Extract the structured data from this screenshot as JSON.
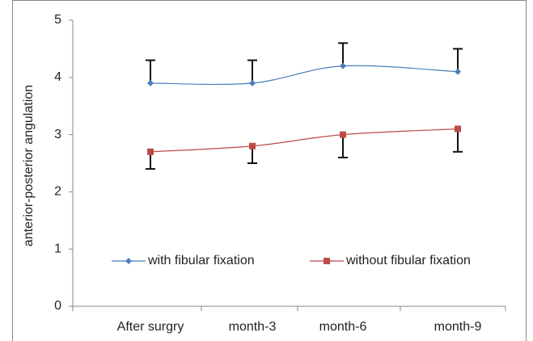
{
  "chart_data": {
    "type": "line",
    "y_label": "anterior-posterior angulation",
    "categories": [
      "After surgry",
      "month-3",
      "month-6",
      "month-9"
    ],
    "series": [
      {
        "name": "with fibular fixation",
        "color": "#4a7ebb",
        "marker": "diamond",
        "error_direction": "plus",
        "values": [
          3.9,
          3.9,
          4.2,
          4.1
        ],
        "errors": [
          0.4,
          0.4,
          0.4,
          0.4
        ]
      },
      {
        "name": "without fibular fixation",
        "color": "#be4b48",
        "marker": "square",
        "error_direction": "minus",
        "values": [
          2.7,
          2.8,
          3.0,
          3.1
        ],
        "errors": [
          0.3,
          0.3,
          0.4,
          0.4
        ]
      }
    ],
    "ylim": [
      0,
      5
    ],
    "yticks": [
      0,
      1,
      2,
      3,
      4,
      5
    ],
    "grid": false,
    "smooth": true
  }
}
